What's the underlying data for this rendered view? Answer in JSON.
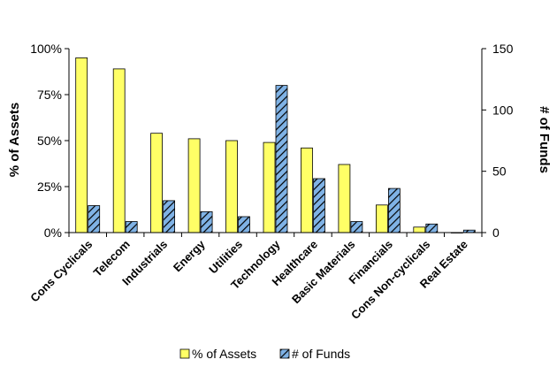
{
  "chart_data": {
    "type": "bar",
    "categories": [
      "Cons Cyclicals",
      "Telecom",
      "Industrials",
      "Energy",
      "Utilities",
      "Technology",
      "Healthcare",
      "Basic Materials",
      "Financials",
      "Cons Non-cyclicals",
      "Real Estate"
    ],
    "series": [
      {
        "name": "% of Assets",
        "axis": "left",
        "color": "#ffff66",
        "values": [
          95,
          89,
          54,
          51,
          50,
          49,
          46,
          37,
          15,
          3,
          0
        ]
      },
      {
        "name": "# of Funds",
        "axis": "right",
        "color": "#5b9bd5",
        "values": [
          22,
          9,
          26,
          17,
          13,
          120,
          44,
          9,
          36,
          7,
          2
        ]
      }
    ],
    "ylabel": "% of Assets",
    "y2label": "# of Funds",
    "ylim": [
      0,
      100
    ],
    "y2lim": [
      0,
      150
    ],
    "yticks": [
      "0%",
      "25%",
      "50%",
      "75%",
      "100%"
    ],
    "y2ticks": [
      "0",
      "50",
      "100",
      "150"
    ],
    "legend_position": "bottom",
    "grid": false
  }
}
